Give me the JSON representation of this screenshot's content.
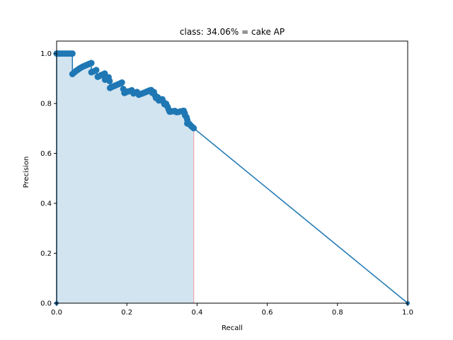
{
  "chart_data": {
    "type": "line",
    "title": "class: 34.06% = cake AP",
    "xlabel": "Recall",
    "ylabel": "Precision",
    "xlim": [
      0.0,
      1.0
    ],
    "ylim": [
      0.0,
      1.05
    ],
    "x_ticks": [
      "0.0",
      "0.2",
      "0.4",
      "0.6",
      "0.8",
      "1.0"
    ],
    "y_ticks": [
      "0.0",
      "0.2",
      "0.4",
      "0.6",
      "0.8",
      "1.0"
    ],
    "grid": false,
    "colors": {
      "line": "#1f77b4",
      "fill": "#1f77b4",
      "recall_marker": "#f4a8a8"
    },
    "recall_cutoff": 0.3906,
    "series": [
      {
        "points": [
          [
            0.0,
            0.0
          ],
          [
            0.0,
            1.0
          ],
          [
            0.002,
            1.0
          ],
          [
            0.006,
            1.0
          ],
          [
            0.011,
            1.0
          ],
          [
            0.016,
            1.0
          ],
          [
            0.021,
            1.0
          ],
          [
            0.026,
            1.0
          ],
          [
            0.031,
            1.0
          ],
          [
            0.036,
            1.0
          ],
          [
            0.041,
            1.0
          ],
          [
            0.045,
            1.0
          ],
          [
            0.045,
            0.918
          ],
          [
            0.05,
            0.924
          ],
          [
            0.055,
            0.93
          ],
          [
            0.06,
            0.935
          ],
          [
            0.065,
            0.94
          ],
          [
            0.07,
            0.944
          ],
          [
            0.075,
            0.948
          ],
          [
            0.08,
            0.951
          ],
          [
            0.085,
            0.954
          ],
          [
            0.09,
            0.957
          ],
          [
            0.095,
            0.96
          ],
          [
            0.099,
            0.962
          ],
          [
            0.099,
            0.925
          ],
          [
            0.104,
            0.928
          ],
          [
            0.11,
            0.931
          ],
          [
            0.113,
            0.934
          ],
          [
            0.117,
            0.907
          ],
          [
            0.122,
            0.91
          ],
          [
            0.127,
            0.914
          ],
          [
            0.133,
            0.917
          ],
          [
            0.137,
            0.92
          ],
          [
            0.138,
            0.895
          ],
          [
            0.143,
            0.9
          ],
          [
            0.148,
            0.905
          ],
          [
            0.151,
            0.89
          ],
          [
            0.152,
            0.862
          ],
          [
            0.157,
            0.866
          ],
          [
            0.162,
            0.869
          ],
          [
            0.167,
            0.872
          ],
          [
            0.172,
            0.875
          ],
          [
            0.177,
            0.878
          ],
          [
            0.182,
            0.881
          ],
          [
            0.186,
            0.884
          ],
          [
            0.19,
            0.858
          ],
          [
            0.193,
            0.842
          ],
          [
            0.198,
            0.845
          ],
          [
            0.203,
            0.848
          ],
          [
            0.209,
            0.85
          ],
          [
            0.214,
            0.853
          ],
          [
            0.219,
            0.84
          ],
          [
            0.224,
            0.843
          ],
          [
            0.229,
            0.846
          ],
          [
            0.234,
            0.835
          ],
          [
            0.239,
            0.838
          ],
          [
            0.244,
            0.84
          ],
          [
            0.249,
            0.843
          ],
          [
            0.254,
            0.846
          ],
          [
            0.259,
            0.849
          ],
          [
            0.264,
            0.852
          ],
          [
            0.269,
            0.854
          ],
          [
            0.272,
            0.843
          ],
          [
            0.277,
            0.846
          ],
          [
            0.28,
            0.833
          ],
          [
            0.283,
            0.822
          ],
          [
            0.288,
            0.825
          ],
          [
            0.291,
            0.812
          ],
          [
            0.296,
            0.815
          ],
          [
            0.301,
            0.817
          ],
          [
            0.304,
            0.807
          ],
          [
            0.307,
            0.797
          ],
          [
            0.312,
            0.799
          ],
          [
            0.316,
            0.787
          ],
          [
            0.319,
            0.776
          ],
          [
            0.322,
            0.767
          ],
          [
            0.327,
            0.768
          ],
          [
            0.332,
            0.769
          ],
          [
            0.337,
            0.77
          ],
          [
            0.342,
            0.765
          ],
          [
            0.347,
            0.766
          ],
          [
            0.352,
            0.768
          ],
          [
            0.357,
            0.769
          ],
          [
            0.362,
            0.771
          ],
          [
            0.365,
            0.761
          ],
          [
            0.366,
            0.752
          ],
          [
            0.37,
            0.745
          ],
          [
            0.372,
            0.735
          ],
          [
            0.372,
            0.72
          ],
          [
            0.375,
            0.722
          ],
          [
            0.378,
            0.718
          ],
          [
            0.381,
            0.713
          ],
          [
            0.384,
            0.709
          ],
          [
            0.387,
            0.705
          ],
          [
            0.3906,
            0.701
          ],
          [
            1.0,
            0.0
          ]
        ]
      }
    ]
  }
}
